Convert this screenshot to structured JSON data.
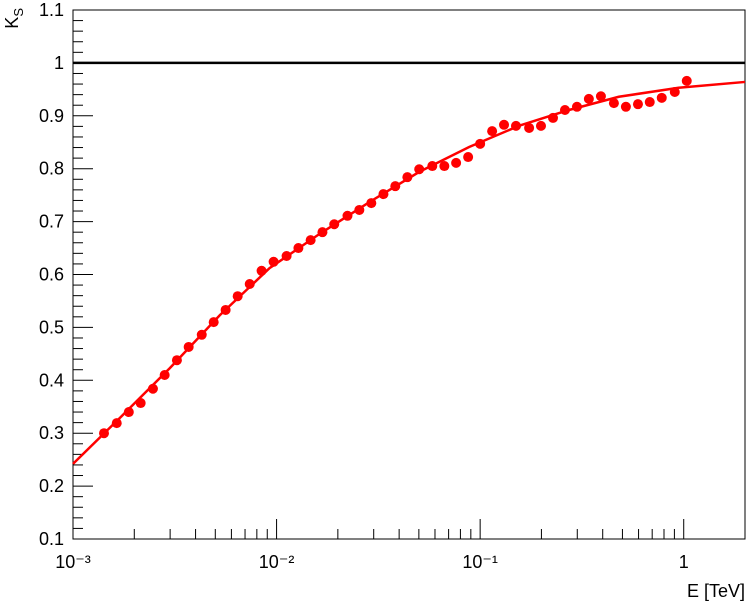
{
  "chart_data": {
    "type": "scatter",
    "xlabel": "E [TeV]",
    "ylabel": {
      "text": "K",
      "sub": "S"
    },
    "xscale": "log",
    "xlim": [
      0.001,
      2
    ],
    "ylim": [
      0.1,
      1.1
    ],
    "xticks": [
      {
        "value": 0.001,
        "label": "10⁻³"
      },
      {
        "value": 0.01,
        "label": "10⁻²"
      },
      {
        "value": 0.1,
        "label": "10⁻¹"
      },
      1
    ],
    "yticks": [
      0.1,
      0.2,
      0.3,
      0.4,
      0.5,
      0.6,
      0.7,
      0.8,
      0.9,
      1,
      1.1
    ],
    "hlines": [
      {
        "value": 1,
        "color": "#000000"
      }
    ],
    "series": [
      {
        "type": "scatter",
        "color": "#ff0000",
        "x": [
          0.00142,
          0.00164,
          0.00188,
          0.00215,
          0.00247,
          0.00282,
          0.00324,
          0.0037,
          0.00429,
          0.00491,
          0.00562,
          0.00644,
          0.00738,
          0.00844,
          0.00967,
          0.0112,
          0.0128,
          0.0147,
          0.0168,
          0.0192,
          0.0223,
          0.0255,
          0.0292,
          0.0335,
          0.0383,
          0.0439,
          0.0502,
          0.0582,
          0.0667,
          0.0762,
          0.0873,
          0.1,
          0.1145,
          0.131,
          0.15,
          0.174,
          0.199,
          0.228,
          0.261,
          0.299,
          0.342,
          0.392,
          0.454,
          0.52,
          0.596,
          0.681,
          0.78,
          0.904,
          1.035
        ],
        "values": [
          0.3,
          0.319,
          0.34,
          0.357,
          0.384,
          0.41,
          0.438,
          0.463,
          0.486,
          0.51,
          0.533,
          0.559,
          0.582,
          0.607,
          0.624,
          0.635,
          0.65,
          0.665,
          0.68,
          0.695,
          0.711,
          0.722,
          0.735,
          0.752,
          0.767,
          0.784,
          0.799,
          0.805,
          0.805,
          0.811,
          0.822,
          0.847,
          0.871,
          0.883,
          0.881,
          0.877,
          0.881,
          0.896,
          0.911,
          0.917,
          0.932,
          0.937,
          0.924,
          0.917,
          0.922,
          0.926,
          0.934,
          0.945,
          0.966
        ]
      },
      {
        "type": "line",
        "color": "#ff0000",
        "x": [
          0.001,
          0.0017,
          0.00299,
          0.00526,
          0.00924,
          0.0163,
          0.0286,
          0.0502,
          0.0883,
          0.155,
          0.273,
          0.48,
          0.944,
          2
        ],
        "values": [
          0.242,
          0.329,
          0.423,
          0.523,
          0.612,
          0.677,
          0.737,
          0.794,
          0.841,
          0.881,
          0.911,
          0.936,
          0.953,
          0.964
        ]
      }
    ]
  }
}
